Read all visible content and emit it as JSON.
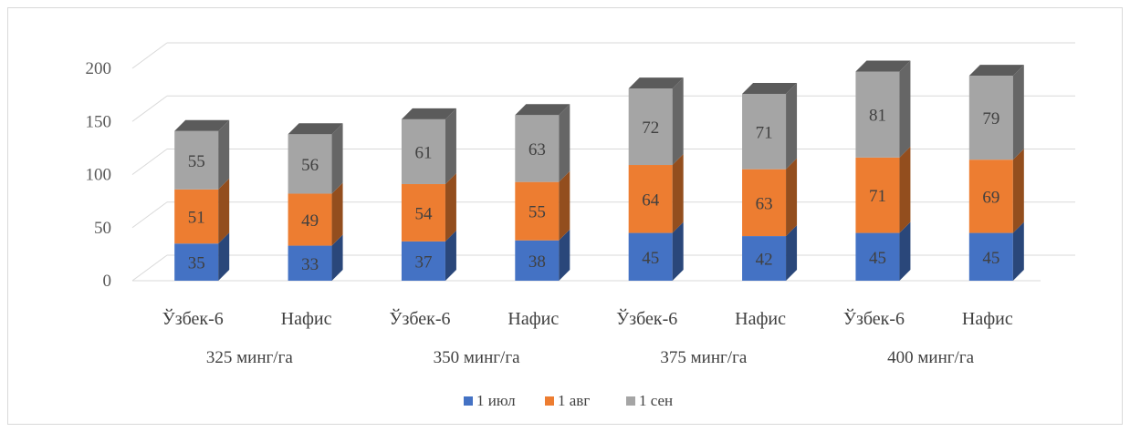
{
  "chart_data": {
    "type": "bar",
    "stacked": true,
    "style": "3d-column",
    "ylim": [
      0,
      200
    ],
    "yticks": [
      0,
      50,
      100,
      150,
      200
    ],
    "categories": [
      "Ўзбек-6",
      "Нафис",
      "Ўзбек-6",
      "Нафис",
      "Ўзбек-6",
      "Нафис",
      "Ўзбек-6",
      "Нафис"
    ],
    "groups": [
      "325 минг/га",
      "350 минг/га",
      "375 минг/га",
      "400 минг/га"
    ],
    "series": [
      {
        "name": "1 июл",
        "color": "#4472c4",
        "values": [
          35,
          33,
          37,
          38,
          45,
          42,
          45,
          45
        ]
      },
      {
        "name": "1 авг",
        "color": "#ed7d31",
        "values": [
          51,
          49,
          54,
          55,
          64,
          63,
          71,
          69
        ]
      },
      {
        "name": "1 сен",
        "color": "#a5a5a5",
        "values": [
          55,
          56,
          61,
          63,
          72,
          71,
          81,
          79
        ]
      }
    ],
    "grid": true,
    "legend": "bottom"
  }
}
